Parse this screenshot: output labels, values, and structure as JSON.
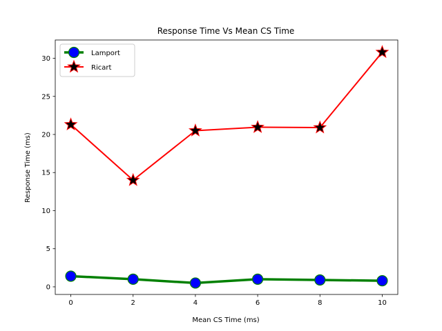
{
  "chart_data": {
    "type": "line",
    "title": "Response Time Vs Mean CS Time",
    "xlabel": "Mean CS Time (ms)",
    "ylabel": "Response Time (ms)",
    "x": [
      0,
      2,
      4,
      6,
      8,
      10
    ],
    "xlim": [
      -0.5,
      10.5
    ],
    "ylim": [
      -1.0,
      32.4
    ],
    "xticks": [
      0,
      2,
      4,
      6,
      8,
      10
    ],
    "yticks": [
      0,
      5,
      10,
      15,
      20,
      25,
      30
    ],
    "grid": false,
    "legend_position": "upper-left",
    "series": [
      {
        "name": "Lamport",
        "values": [
          1.4,
          1.0,
          0.5,
          1.0,
          0.9,
          0.8
        ],
        "line_color": "#008000",
        "marker": "circle",
        "marker_color": "#0000ff"
      },
      {
        "name": "Ricart",
        "values": [
          21.3,
          14.0,
          20.5,
          20.95,
          20.9,
          30.8
        ],
        "line_color": "#ff0000",
        "marker": "star",
        "marker_color": "#000000"
      }
    ]
  }
}
